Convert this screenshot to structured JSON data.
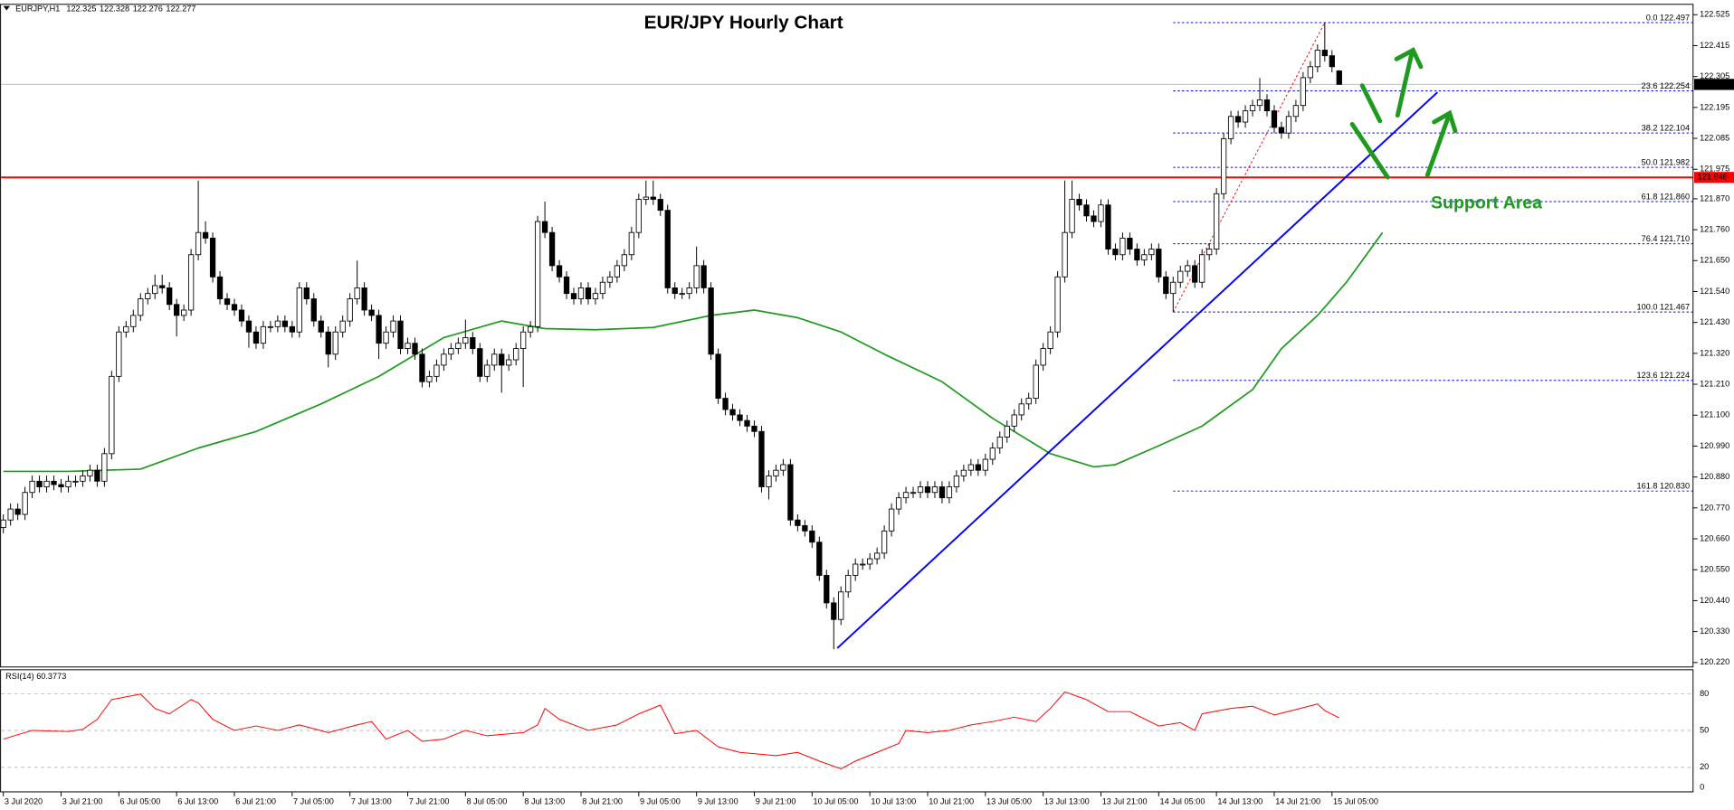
{
  "symbol_label": "EURJPY,H1",
  "chart_data": {
    "type": "candlestick",
    "title": "EUR/JPY Hourly Chart",
    "bull_color": "#ffffff",
    "bear_color": "#000000",
    "open": [
      120.7,
      120.727,
      120.766,
      120.747,
      120.825,
      120.865,
      120.845,
      120.865,
      120.853,
      120.845,
      120.865,
      120.865,
      120.884,
      120.904,
      120.865,
      120.963,
      121.238,
      121.396,
      121.415,
      121.455,
      121.514,
      121.533,
      121.561,
      121.553,
      121.494,
      121.455,
      121.474,
      121.671,
      121.75,
      121.73,
      121.592,
      121.514,
      121.494,
      121.474,
      121.435,
      121.396,
      121.356,
      121.415,
      121.415,
      121.435,
      121.415,
      121.396,
      121.553,
      121.514,
      121.435,
      121.396,
      121.317,
      121.396,
      121.435,
      121.514,
      121.553,
      121.474,
      121.455,
      121.356,
      121.396,
      121.435,
      121.337,
      121.356,
      121.317,
      121.219,
      121.238,
      121.278,
      121.317,
      121.337,
      121.356,
      121.376,
      121.337,
      121.238,
      121.278,
      121.317,
      121.278,
      121.297,
      121.337,
      121.396,
      121.415,
      121.789,
      121.75,
      121.632,
      121.592,
      121.533,
      121.514,
      121.553,
      121.514,
      121.533,
      121.573,
      121.592,
      121.632,
      121.671,
      121.75,
      121.868,
      121.876,
      121.868,
      121.829,
      121.553,
      121.533,
      121.533,
      121.553,
      121.632,
      121.553,
      121.317,
      121.16,
      121.12,
      121.101,
      121.081,
      121.061,
      121.042,
      120.845,
      120.884,
      120.904,
      120.924,
      120.727,
      120.707,
      120.688,
      120.648,
      120.53,
      120.432,
      120.373,
      120.471,
      120.53,
      120.57,
      120.57,
      120.589,
      120.609,
      120.688,
      120.766,
      120.806,
      120.825,
      120.825,
      120.845,
      120.825,
      120.845,
      120.806,
      120.845,
      120.884,
      120.904,
      120.924,
      120.904,
      120.943,
      120.983,
      121.022,
      121.061,
      121.101,
      121.14,
      121.16,
      121.278,
      121.337,
      121.396,
      121.592,
      121.75,
      121.868,
      121.848,
      121.809,
      121.789,
      121.848,
      121.691,
      121.671,
      121.73,
      121.691,
      121.652,
      121.671,
      121.691,
      121.592,
      121.533,
      121.573,
      121.612,
      121.632,
      121.573,
      121.671,
      121.691,
      121.888,
      122.084,
      122.163,
      122.143,
      122.183,
      122.202,
      122.222,
      122.183,
      122.124,
      122.104,
      122.163,
      122.202,
      122.301,
      122.34,
      122.399,
      122.379,
      122.325
    ],
    "high": [
      120.747,
      120.786,
      120.786,
      120.845,
      120.885,
      120.885,
      120.885,
      120.885,
      120.873,
      120.885,
      120.885,
      120.904,
      120.924,
      120.924,
      120.983,
      121.258,
      121.416,
      121.435,
      121.475,
      121.534,
      121.553,
      121.6,
      121.6,
      121.573,
      121.514,
      121.494,
      121.691,
      121.935,
      121.79,
      121.75,
      121.612,
      121.534,
      121.514,
      121.494,
      121.455,
      121.416,
      121.435,
      121.435,
      121.455,
      121.455,
      121.435,
      121.573,
      121.573,
      121.534,
      121.455,
      121.416,
      121.416,
      121.455,
      121.534,
      121.65,
      121.573,
      121.494,
      121.475,
      121.416,
      121.455,
      121.455,
      121.376,
      121.376,
      121.337,
      121.258,
      121.298,
      121.337,
      121.357,
      121.376,
      121.44,
      121.396,
      121.357,
      121.298,
      121.337,
      121.337,
      121.317,
      121.357,
      121.416,
      121.435,
      121.809,
      121.86,
      121.77,
      121.652,
      121.612,
      121.553,
      121.573,
      121.573,
      121.553,
      121.593,
      121.612,
      121.652,
      121.691,
      121.77,
      121.888,
      121.935,
      121.935,
      121.888,
      121.849,
      121.573,
      121.553,
      121.573,
      121.7,
      121.652,
      121.573,
      121.337,
      121.18,
      121.14,
      121.121,
      121.101,
      121.081,
      121.062,
      120.904,
      120.924,
      120.944,
      120.944,
      120.747,
      120.727,
      120.708,
      120.668,
      120.55,
      120.452,
      120.491,
      120.55,
      120.59,
      120.59,
      120.609,
      120.629,
      120.708,
      120.786,
      120.826,
      120.845,
      120.845,
      120.865,
      120.865,
      120.865,
      120.865,
      120.865,
      120.904,
      120.924,
      120.944,
      120.944,
      120.963,
      121.003,
      121.042,
      121.081,
      121.121,
      121.16,
      121.18,
      121.298,
      121.357,
      121.416,
      121.612,
      121.935,
      121.935,
      121.888,
      121.868,
      121.829,
      121.868,
      121.868,
      121.711,
      121.75,
      121.75,
      121.711,
      121.691,
      121.711,
      121.711,
      121.612,
      121.593,
      121.632,
      121.652,
      121.652,
      121.691,
      121.711,
      121.908,
      122.104,
      122.183,
      122.183,
      122.203,
      122.222,
      122.3,
      122.242,
      122.203,
      122.144,
      122.183,
      122.222,
      122.321,
      122.36,
      122.419,
      122.497,
      122.399,
      122.328
    ],
    "low": [
      120.68,
      120.707,
      120.727,
      120.727,
      120.805,
      120.825,
      120.825,
      120.833,
      120.825,
      120.825,
      120.845,
      120.845,
      120.864,
      120.845,
      120.845,
      120.943,
      121.218,
      121.376,
      121.395,
      121.435,
      121.494,
      121.513,
      121.533,
      121.474,
      121.38,
      121.435,
      121.454,
      121.651,
      121.71,
      121.572,
      121.494,
      121.474,
      121.454,
      121.415,
      121.34,
      121.336,
      121.336,
      121.395,
      121.395,
      121.395,
      121.376,
      121.376,
      121.494,
      121.415,
      121.376,
      121.27,
      121.297,
      121.376,
      121.415,
      121.494,
      121.454,
      121.435,
      121.3,
      121.336,
      121.376,
      121.317,
      121.317,
      121.297,
      121.199,
      121.199,
      121.218,
      121.258,
      121.297,
      121.317,
      121.336,
      121.317,
      121.218,
      121.218,
      121.258,
      121.18,
      121.258,
      121.277,
      121.2,
      121.376,
      121.395,
      121.73,
      121.612,
      121.572,
      121.513,
      121.494,
      121.494,
      121.494,
      121.494,
      121.513,
      121.553,
      121.572,
      121.612,
      121.651,
      121.73,
      121.848,
      121.848,
      121.809,
      121.533,
      121.513,
      121.513,
      121.513,
      121.533,
      121.533,
      121.297,
      121.14,
      121.1,
      121.081,
      121.061,
      121.041,
      121.022,
      120.825,
      120.8,
      120.864,
      120.884,
      120.707,
      120.687,
      120.668,
      120.628,
      120.51,
      120.412,
      120.267,
      120.353,
      120.451,
      120.51,
      120.55,
      120.55,
      120.569,
      120.589,
      120.668,
      120.746,
      120.786,
      120.805,
      120.805,
      120.805,
      120.805,
      120.786,
      120.786,
      120.825,
      120.864,
      120.884,
      120.884,
      120.884,
      120.923,
      120.963,
      121.002,
      121.041,
      121.081,
      121.12,
      121.14,
      121.258,
      121.317,
      121.376,
      121.572,
      121.73,
      121.828,
      121.789,
      121.769,
      121.769,
      121.671,
      121.651,
      121.651,
      121.671,
      121.632,
      121.632,
      121.651,
      121.572,
      121.513,
      121.467,
      121.553,
      121.592,
      121.553,
      121.553,
      121.651,
      121.671,
      121.868,
      122.064,
      122.123,
      122.123,
      122.163,
      122.182,
      122.163,
      122.104,
      122.084,
      122.084,
      122.143,
      122.182,
      122.281,
      122.32,
      122.359,
      122.32,
      122.276
    ],
    "close": [
      120.727,
      120.766,
      120.747,
      120.825,
      120.865,
      120.845,
      120.865,
      120.853,
      120.845,
      120.865,
      120.865,
      120.884,
      120.904,
      120.865,
      120.963,
      121.238,
      121.396,
      121.415,
      121.455,
      121.514,
      121.533,
      121.561,
      121.553,
      121.494,
      121.455,
      121.474,
      121.671,
      121.75,
      121.73,
      121.592,
      121.514,
      121.494,
      121.474,
      121.435,
      121.396,
      121.356,
      121.415,
      121.415,
      121.435,
      121.415,
      121.396,
      121.553,
      121.514,
      121.435,
      121.396,
      121.317,
      121.396,
      121.435,
      121.514,
      121.553,
      121.474,
      121.455,
      121.356,
      121.396,
      121.435,
      121.337,
      121.356,
      121.317,
      121.219,
      121.238,
      121.278,
      121.317,
      121.337,
      121.356,
      121.376,
      121.337,
      121.238,
      121.278,
      121.317,
      121.278,
      121.297,
      121.337,
      121.396,
      121.415,
      121.789,
      121.75,
      121.632,
      121.592,
      121.533,
      121.514,
      121.553,
      121.514,
      121.533,
      121.573,
      121.592,
      121.632,
      121.671,
      121.75,
      121.868,
      121.876,
      121.868,
      121.829,
      121.553,
      121.533,
      121.533,
      121.553,
      121.632,
      121.553,
      121.317,
      121.16,
      121.12,
      121.101,
      121.081,
      121.061,
      121.042,
      120.845,
      120.884,
      120.904,
      120.924,
      120.727,
      120.707,
      120.688,
      120.648,
      120.53,
      120.432,
      120.373,
      120.471,
      120.53,
      120.57,
      120.57,
      120.589,
      120.609,
      120.688,
      120.766,
      120.806,
      120.825,
      120.825,
      120.845,
      120.825,
      120.845,
      120.806,
      120.845,
      120.884,
      120.904,
      120.924,
      120.904,
      120.943,
      120.983,
      121.022,
      121.061,
      121.101,
      121.14,
      121.16,
      121.278,
      121.337,
      121.396,
      121.592,
      121.75,
      121.868,
      121.848,
      121.809,
      121.789,
      121.848,
      121.691,
      121.671,
      121.73,
      121.691,
      121.652,
      121.671,
      121.691,
      121.592,
      121.533,
      121.573,
      121.612,
      121.632,
      121.573,
      121.671,
      121.691,
      121.888,
      122.084,
      122.163,
      122.143,
      122.183,
      122.202,
      122.222,
      122.183,
      122.124,
      122.104,
      122.163,
      122.202,
      122.301,
      122.34,
      122.399,
      122.379,
      122.34,
      122.277
    ],
    "xlim": [
      -0.46,
      234
    ],
    "xticks": [
      {
        "value": 0,
        "label": "3 Jul 2020"
      },
      {
        "value": 8,
        "label": "3 Jul 21:00"
      },
      {
        "value": 16,
        "label": "6 Jul 05:00"
      },
      {
        "value": 24,
        "label": "6 Jul 13:00"
      },
      {
        "value": 32,
        "label": "6 Jul 21:00"
      },
      {
        "value": 40,
        "label": "7 Jul 05:00"
      },
      {
        "value": 48,
        "label": "7 Jul 13:00"
      },
      {
        "value": 56,
        "label": "7 Jul 21:00"
      },
      {
        "value": 64,
        "label": "8 Jul 05:00"
      },
      {
        "value": 72,
        "label": "8 Jul 13:00"
      },
      {
        "value": 80,
        "label": "8 Jul 21:00"
      },
      {
        "value": 88,
        "label": "9 Jul 05:00"
      },
      {
        "value": 96,
        "label": "9 Jul 13:00"
      },
      {
        "value": 104,
        "label": "9 Jul 21:00"
      },
      {
        "value": 112,
        "label": "10 Jul 05:00"
      },
      {
        "value": 120,
        "label": "10 Jul 13:00"
      },
      {
        "value": 128,
        "label": "10 Jul 21:00"
      },
      {
        "value": 136,
        "label": "13 Jul 05:00"
      },
      {
        "value": 144,
        "label": "13 Jul 13:00"
      },
      {
        "value": 152,
        "label": "13 Jul 21:00"
      },
      {
        "value": 160,
        "label": "14 Jul 05:00"
      },
      {
        "value": 168,
        "label": "14 Jul 13:00"
      },
      {
        "value": 176,
        "label": "14 Jul 21:00"
      },
      {
        "value": 184,
        "label": "15 Jul 05:00"
      }
    ],
    "ylim": [
      120.204,
      122.564
    ],
    "yticks": [
      122.525,
      122.415,
      122.305,
      122.195,
      122.085,
      121.975,
      {
        "value": 121.87,
        "label": "121.870"
      },
      {
        "value": 121.76,
        "label": "121.760"
      },
      {
        "value": 121.65,
        "label": "121.650"
      },
      {
        "value": 121.54,
        "label": "121.540"
      },
      {
        "value": 121.43,
        "label": "121.430"
      },
      {
        "value": 121.32,
        "label": "121.320"
      },
      {
        "value": 121.21,
        "label": "121.210"
      },
      {
        "value": 121.1,
        "label": "121.100"
      },
      {
        "value": 120.99,
        "label": "120.990"
      },
      {
        "value": 120.88,
        "label": "120.880"
      },
      {
        "value": 120.77,
        "label": "120.770"
      },
      {
        "value": 120.66,
        "label": "120.660"
      },
      {
        "value": 120.55,
        "label": "120.550"
      },
      {
        "value": 120.44,
        "label": "120.440"
      },
      {
        "value": 120.33,
        "label": "120.330"
      },
      {
        "value": 120.22,
        "label": "120.220"
      }
    ],
    "moving_average": {
      "color": "#1e9a1e",
      "x": [
        0,
        9,
        19,
        27,
        35,
        44,
        52,
        61,
        69,
        75,
        82,
        90,
        98,
        104,
        110,
        116,
        122,
        130,
        137,
        145,
        151,
        154,
        160,
        166,
        173,
        177,
        182,
        186,
        191
      ],
      "values": [
        120.9,
        120.9,
        120.908,
        120.983,
        121.042,
        121.14,
        121.238,
        121.376,
        121.435,
        121.408,
        121.404,
        121.412,
        121.455,
        121.474,
        121.447,
        121.396,
        121.317,
        121.219,
        121.089,
        120.963,
        120.916,
        120.924,
        120.991,
        121.061,
        121.191,
        121.337,
        121.455,
        121.573,
        121.75
      ]
    },
    "trendline": {
      "color": "#0000ff",
      "x": [
        115.5,
        198.6
      ],
      "values": [
        120.271,
        122.249
      ]
    },
    "horizontal_line": {
      "color": "#ff0000",
      "value": 121.946
    },
    "last_price": 122.277,
    "fibonacci": {
      "color": "#0000ff",
      "anchor_x": [
        162,
        183
      ],
      "levels": [
        {
          "value": 122.497,
          "label": "0.0 122.497"
        },
        {
          "value": 122.254,
          "label": "23.6 122.254"
        },
        {
          "value": 122.104,
          "label": "38.2 122.104"
        },
        {
          "value": 121.982,
          "label": "50.0 121.982"
        },
        {
          "value": 121.86,
          "label": "61.8 121.860"
        },
        {
          "value": 121.71,
          "label": "76.4 121.710"
        },
        {
          "value": 121.467,
          "label": "100.0 121.467"
        },
        {
          "value": 121.224,
          "label": "123.6 121.224"
        },
        {
          "value": 120.83,
          "label": "161.8 120.830"
        }
      ]
    },
    "annotation": "Support Area",
    "rsi": {
      "label": "RSI(14) 60.3773",
      "color": "#ff0000",
      "ylim": [
        0,
        100
      ],
      "yticks": [
        0,
        20,
        50,
        80
      ],
      "x": [
        0,
        4,
        9,
        11,
        13,
        15,
        19,
        21,
        23,
        26,
        27,
        29,
        32,
        35,
        38,
        41,
        45,
        49,
        51,
        53,
        56,
        58,
        61,
        64,
        67,
        72,
        74,
        75,
        77,
        81,
        85,
        88,
        91,
        93,
        96,
        99,
        102,
        107,
        110,
        113,
        116,
        118,
        121,
        124,
        125,
        128,
        131,
        134,
        137,
        140,
        143,
        145,
        147,
        150,
        153,
        156,
        160,
        163,
        165,
        166,
        170,
        173,
        176,
        179,
        182,
        183,
        185
      ],
      "values": [
        43.0,
        50.1,
        49.2,
        51.0,
        59.1,
        75.2,
        79.7,
        68.0,
        63.6,
        75.2,
        72.5,
        59.1,
        50.1,
        53.7,
        50.1,
        54.6,
        48.3,
        54.6,
        57.3,
        43.0,
        50.1,
        41.2,
        43.0,
        50.1,
        45.7,
        48.3,
        54.6,
        68.0,
        59.1,
        50.1,
        54.6,
        63.6,
        70.7,
        47.4,
        50.1,
        36.7,
        32.2,
        29.5,
        32.2,
        25.1,
        18.8,
        25.1,
        32.2,
        39.4,
        50.1,
        48.3,
        50.1,
        54.6,
        57.3,
        60.9,
        57.3,
        68.0,
        81.5,
        75.2,
        65.4,
        65.4,
        53.7,
        56.4,
        50.1,
        63.6,
        68.0,
        69.8,
        62.7,
        67.1,
        71.6,
        66.2,
        60.3773
      ]
    }
  }
}
